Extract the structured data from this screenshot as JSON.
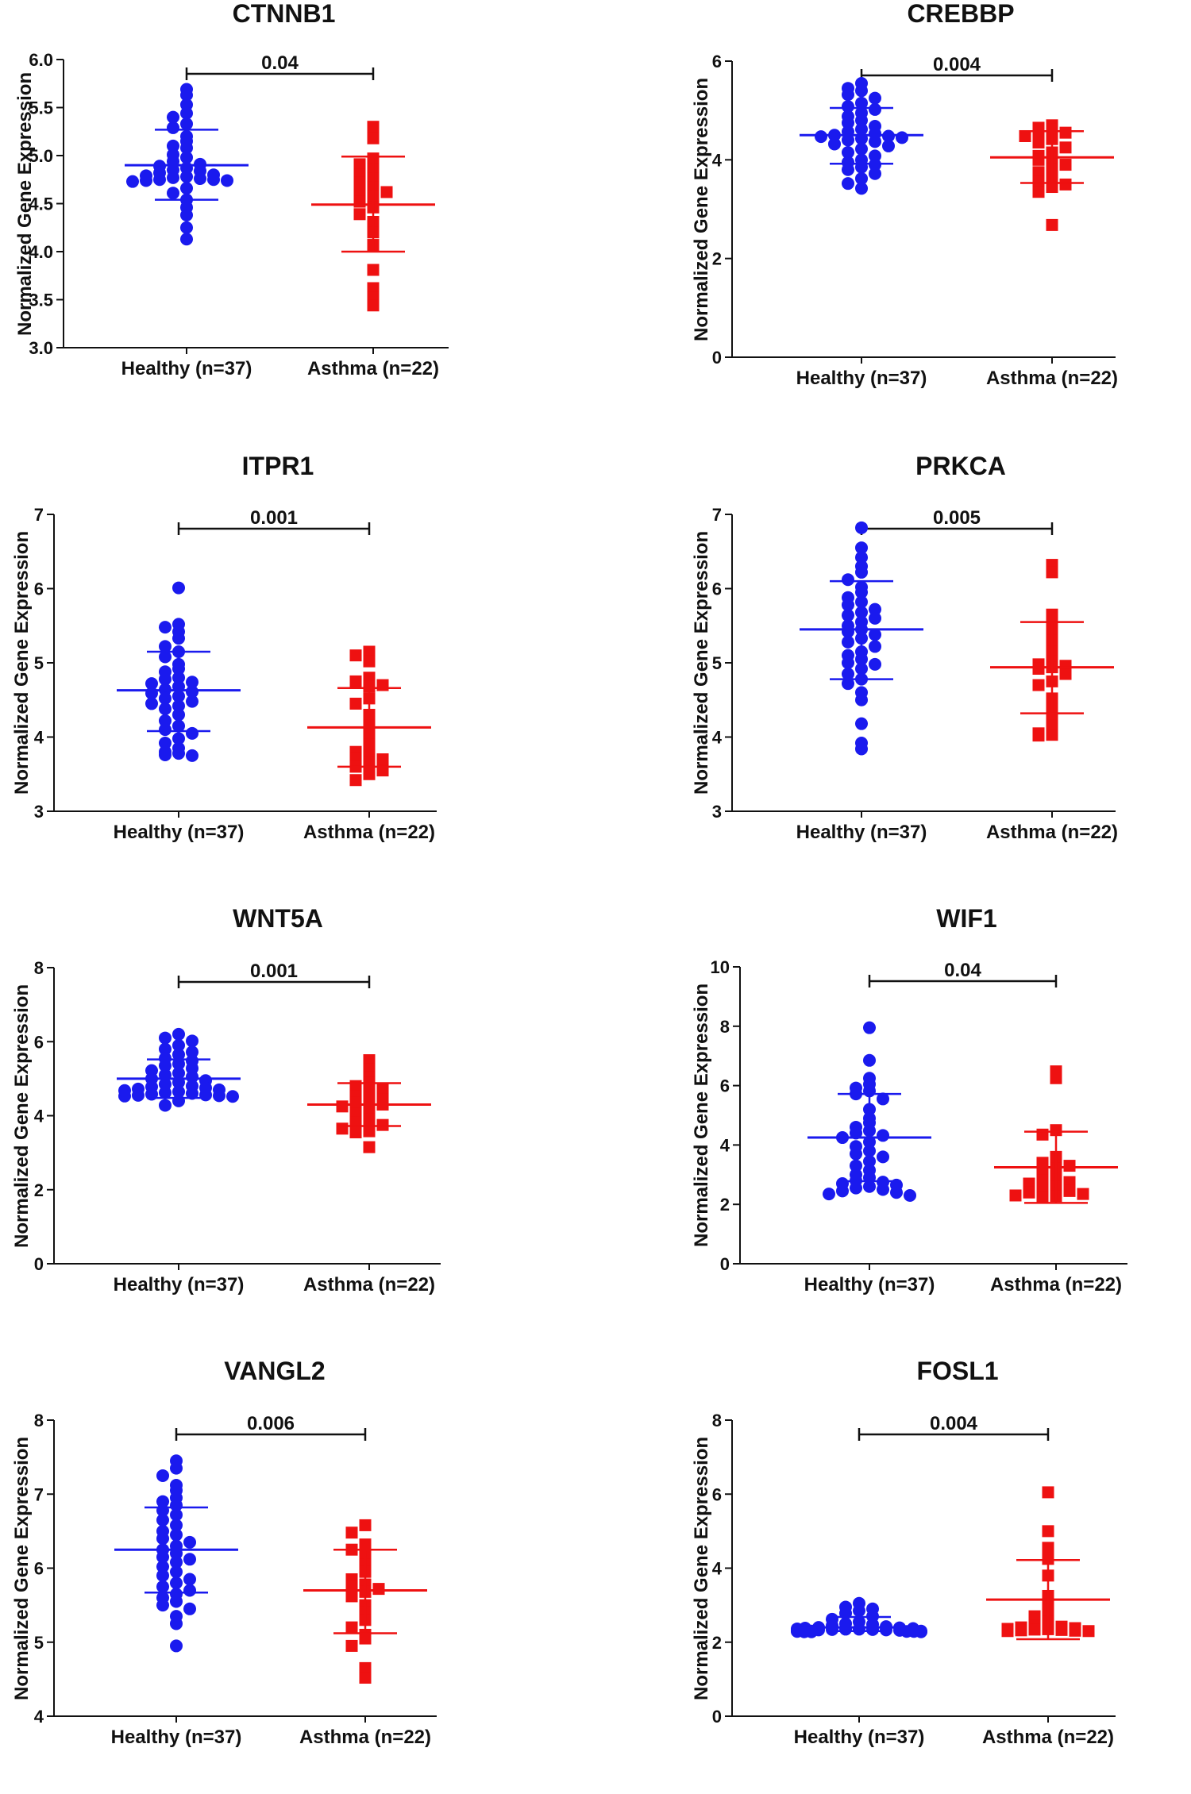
{
  "figure": {
    "y_axis_label": "Normalized Gene Expression"
  },
  "colors": {
    "healthy": "#1a1aee",
    "asthma": "#ee1111",
    "axis": "#111111"
  },
  "chart_data": [
    {
      "type": "scatter",
      "title": "CTNNB1",
      "ylabel": "Normalized Gene Expression",
      "ylim": [
        3.0,
        6.0
      ],
      "yticks": [
        "3.0",
        "3.5",
        "4.0",
        "4.5",
        "5.0",
        "5.5",
        "6.0"
      ],
      "categories": [
        "Healthy  (n=37)",
        "Asthma (n=22)"
      ],
      "p_value": "0.04",
      "series": [
        {
          "name": "Healthy",
          "n": 37,
          "marker": "circle",
          "mean": 4.9,
          "sd_low": 4.54,
          "sd_high": 5.27,
          "values": [
            5.69,
            5.63,
            5.53,
            5.44,
            5.4,
            5.33,
            5.29,
            5.2,
            5.15,
            5.1,
            5.08,
            5.01,
            4.98,
            4.94,
            4.91,
            4.89,
            4.87,
            4.85,
            4.84,
            4.82,
            4.8,
            4.79,
            4.78,
            4.77,
            4.76,
            4.75,
            4.75,
            4.74,
            4.74,
            4.73,
            4.66,
            4.61,
            4.54,
            4.46,
            4.38,
            4.25,
            4.13
          ]
        },
        {
          "name": "Asthma",
          "n": 22,
          "marker": "square",
          "mean": 4.49,
          "sd_low": 4.0,
          "sd_high": 4.99,
          "values": [
            5.3,
            5.18,
            4.97,
            4.91,
            4.86,
            4.8,
            4.76,
            4.72,
            4.67,
            4.64,
            4.62,
            4.58,
            4.52,
            4.46,
            4.39,
            4.31,
            4.2,
            4.07,
            3.81,
            3.62,
            3.52,
            3.44
          ]
        }
      ]
    },
    {
      "type": "scatter",
      "title": "CREBBP",
      "ylabel": "Normalized Gene Expression",
      "ylim": [
        0,
        6
      ],
      "yticks": [
        "0",
        "2",
        "4",
        "6"
      ],
      "categories": [
        "Healthy  (n=37)",
        "Asthma (n=22)"
      ],
      "p_value": "0.004",
      "series": [
        {
          "name": "Healthy",
          "n": 37,
          "marker": "circle",
          "mean": 4.5,
          "sd_low": 3.92,
          "sd_high": 5.05,
          "values": [
            5.55,
            5.45,
            5.4,
            5.32,
            5.25,
            5.15,
            5.08,
            5.02,
            4.95,
            4.88,
            4.8,
            4.75,
            4.68,
            4.62,
            4.57,
            4.53,
            4.5,
            4.48,
            4.47,
            4.45,
            4.43,
            4.4,
            4.37,
            4.32,
            4.28,
            4.22,
            4.15,
            4.08,
            4.0,
            3.95,
            3.9,
            3.85,
            3.8,
            3.72,
            3.62,
            3.52,
            3.42
          ]
        },
        {
          "name": "Asthma",
          "n": 22,
          "marker": "square",
          "mean": 4.05,
          "sd_low": 3.53,
          "sd_high": 4.58,
          "values": [
            4.7,
            4.65,
            4.62,
            4.58,
            4.55,
            4.48,
            4.42,
            4.35,
            4.25,
            4.15,
            4.08,
            4.05,
            4.0,
            3.9,
            3.82,
            3.75,
            3.65,
            3.55,
            3.5,
            3.45,
            3.35,
            2.68
          ]
        }
      ]
    },
    {
      "type": "scatter",
      "title": "ITPR1",
      "ylabel": "Normalized Gene Expression",
      "ylim": [
        3,
        7
      ],
      "yticks": [
        "3",
        "4",
        "5",
        "6",
        "7"
      ],
      "categories": [
        "Healthy  (n=37)",
        "Asthma (n=22)"
      ],
      "p_value": "0.001",
      "series": [
        {
          "name": "Healthy",
          "n": 37,
          "marker": "circle",
          "mean": 4.63,
          "sd_low": 4.08,
          "sd_high": 5.15,
          "values": [
            6.01,
            5.52,
            5.48,
            5.42,
            5.33,
            5.22,
            5.15,
            5.08,
            4.98,
            4.92,
            4.88,
            4.8,
            4.78,
            4.74,
            4.72,
            4.68,
            4.64,
            4.61,
            4.59,
            4.55,
            4.52,
            4.48,
            4.45,
            4.42,
            4.38,
            4.3,
            4.22,
            4.15,
            4.1,
            4.05,
            3.98,
            3.92,
            3.85,
            3.8,
            3.78,
            3.76,
            3.75
          ]
        },
        {
          "name": "Asthma",
          "n": 22,
          "marker": "square",
          "mean": 4.13,
          "sd_low": 3.6,
          "sd_high": 4.66,
          "values": [
            5.15,
            5.1,
            5.02,
            4.8,
            4.75,
            4.7,
            4.68,
            4.52,
            4.45,
            4.3,
            4.15,
            4.0,
            3.9,
            3.8,
            3.75,
            3.72,
            3.7,
            3.65,
            3.6,
            3.55,
            3.5,
            3.42
          ]
        }
      ]
    },
    {
      "type": "scatter",
      "title": "PRKCA",
      "ylabel": "Normalized Gene Expression",
      "ylim": [
        3,
        7
      ],
      "yticks": [
        "3",
        "4",
        "5",
        "6",
        "7"
      ],
      "categories": [
        "Healthy  (n=37)",
        "Asthma (n=22)"
      ],
      "p_value": "0.005",
      "series": [
        {
          "name": "Healthy",
          "n": 37,
          "marker": "circle",
          "mean": 5.45,
          "sd_low": 4.78,
          "sd_high": 6.1,
          "values": [
            6.82,
            6.55,
            6.42,
            6.3,
            6.22,
            6.12,
            6.02,
            5.95,
            5.88,
            5.82,
            5.78,
            5.72,
            5.68,
            5.64,
            5.6,
            5.55,
            5.5,
            5.45,
            5.42,
            5.38,
            5.33,
            5.28,
            5.22,
            5.15,
            5.1,
            5.05,
            5.0,
            4.98,
            4.92,
            4.85,
            4.78,
            4.72,
            4.6,
            4.5,
            4.18,
            3.92,
            3.84
          ]
        },
        {
          "name": "Asthma",
          "n": 22,
          "marker": "square",
          "mean": 4.94,
          "sd_low": 4.32,
          "sd_high": 5.55,
          "values": [
            6.32,
            6.22,
            5.65,
            5.52,
            5.42,
            5.3,
            5.15,
            5.02,
            4.98,
            4.96,
            4.94,
            4.92,
            4.85,
            4.75,
            4.7,
            4.52,
            4.38,
            4.25,
            4.15,
            4.05,
            4.03,
            4.02
          ]
        }
      ]
    },
    {
      "type": "scatter",
      "title": "WNT5A",
      "ylabel": "Normalized Gene Expression",
      "ylim": [
        0,
        8
      ],
      "yticks": [
        "0",
        "2",
        "4",
        "6",
        "8"
      ],
      "categories": [
        "Healthy  (n=37)",
        "Asthma (n=22)"
      ],
      "p_value": "0.001",
      "series": [
        {
          "name": "Healthy",
          "n": 37,
          "marker": "circle",
          "mean": 5.0,
          "sd_low": 4.48,
          "sd_high": 5.52,
          "values": [
            6.2,
            6.1,
            6.02,
            5.9,
            5.8,
            5.72,
            5.65,
            5.55,
            5.48,
            5.4,
            5.35,
            5.28,
            5.22,
            5.15,
            5.1,
            5.05,
            5.0,
            4.95,
            4.9,
            4.85,
            4.8,
            4.78,
            4.75,
            4.72,
            4.7,
            4.68,
            4.65,
            4.62,
            4.6,
            4.58,
            4.56,
            4.55,
            4.54,
            4.53,
            4.52,
            4.4,
            4.28
          ]
        },
        {
          "name": "Asthma",
          "n": 22,
          "marker": "square",
          "mean": 4.3,
          "sd_low": 3.72,
          "sd_high": 4.88,
          "values": [
            5.5,
            5.25,
            5.05,
            4.9,
            4.8,
            4.7,
            4.6,
            4.52,
            4.45,
            4.4,
            4.35,
            4.3,
            4.25,
            4.15,
            4.05,
            3.9,
            3.82,
            3.75,
            3.65,
            3.58,
            3.55,
            3.15
          ]
        }
      ]
    },
    {
      "type": "scatter",
      "title": "WIF1",
      "ylabel": "Normalized Gene Expression",
      "ylim": [
        0,
        10
      ],
      "yticks": [
        "0",
        "2",
        "4",
        "6",
        "8",
        "10"
      ],
      "categories": [
        "Healthy  (n=37)",
        "Asthma (n=22)"
      ],
      "p_value": "0.04",
      "series": [
        {
          "name": "Healthy",
          "n": 37,
          "marker": "circle",
          "mean": 4.25,
          "sd_low": 2.78,
          "sd_high": 5.72,
          "values": [
            7.95,
            6.85,
            6.25,
            6.05,
            5.92,
            5.82,
            5.72,
            5.55,
            5.2,
            4.9,
            4.75,
            4.6,
            4.48,
            4.4,
            4.32,
            4.25,
            4.1,
            3.95,
            3.8,
            3.7,
            3.6,
            3.45,
            3.3,
            3.15,
            3.0,
            2.9,
            2.8,
            2.75,
            2.7,
            2.65,
            2.6,
            2.55,
            2.5,
            2.45,
            2.4,
            2.35,
            2.3
          ]
        },
        {
          "name": "Asthma",
          "n": 22,
          "marker": "square",
          "mean": 3.25,
          "sd_low": 2.05,
          "sd_high": 4.45,
          "values": [
            6.48,
            6.25,
            4.5,
            4.35,
            3.6,
            3.5,
            3.4,
            3.3,
            3.2,
            3.1,
            2.9,
            2.8,
            2.75,
            2.7,
            2.6,
            2.5,
            2.45,
            2.4,
            2.35,
            2.3,
            2.28,
            2.25
          ]
        }
      ]
    },
    {
      "type": "scatter",
      "title": "VANGL2",
      "ylabel": "Normalized Gene Expression",
      "ylim": [
        4,
        8
      ],
      "yticks": [
        "4",
        "5",
        "6",
        "7",
        "8"
      ],
      "categories": [
        "Healthy  (n=37)",
        "Asthma (n=22)"
      ],
      "p_value": "0.006",
      "series": [
        {
          "name": "Healthy",
          "n": 37,
          "marker": "circle",
          "mean": 6.25,
          "sd_low": 5.67,
          "sd_high": 6.82,
          "values": [
            7.45,
            7.35,
            7.25,
            7.12,
            7.05,
            6.95,
            6.9,
            6.85,
            6.78,
            6.72,
            6.65,
            6.58,
            6.5,
            6.45,
            6.4,
            6.35,
            6.3,
            6.25,
            6.2,
            6.15,
            6.12,
            6.08,
            6.02,
            5.95,
            5.9,
            5.85,
            5.8,
            5.75,
            5.7,
            5.65,
            5.6,
            5.55,
            5.5,
            5.45,
            5.35,
            5.25,
            4.95
          ]
        },
        {
          "name": "Asthma",
          "n": 22,
          "marker": "square",
          "mean": 5.7,
          "sd_low": 5.12,
          "sd_high": 6.25,
          "values": [
            6.58,
            6.48,
            6.32,
            6.25,
            6.18,
            6.05,
            5.95,
            5.85,
            5.78,
            5.75,
            5.72,
            5.68,
            5.62,
            5.5,
            5.4,
            5.3,
            5.2,
            5.1,
            5.05,
            4.95,
            4.65,
            4.52
          ]
        }
      ]
    },
    {
      "type": "scatter",
      "title": "FOSL1",
      "ylabel": "Normalized Gene Expression",
      "ylim": [
        0,
        8
      ],
      "yticks": [
        "0",
        "2",
        "4",
        "6",
        "8"
      ],
      "categories": [
        "Healthy  (n=37)",
        "Asthma (n=22)"
      ],
      "p_value": "0.004",
      "series": [
        {
          "name": "Healthy",
          "n": 37,
          "marker": "circle",
          "mean": 2.4,
          "sd_low": 2.3,
          "sd_high": 2.68,
          "values": [
            3.05,
            2.95,
            2.9,
            2.85,
            2.78,
            2.7,
            2.62,
            2.55,
            2.5,
            2.48,
            2.45,
            2.42,
            2.4,
            2.39,
            2.38,
            2.37,
            2.36,
            2.35,
            2.35,
            2.34,
            2.34,
            2.33,
            2.33,
            2.32,
            2.32,
            2.31,
            2.31,
            2.3,
            2.3,
            2.3,
            2.3,
            2.29,
            2.29,
            2.29,
            2.28,
            2.28,
            2.28
          ]
        },
        {
          "name": "Asthma",
          "n": 22,
          "marker": "square",
          "mean": 3.15,
          "sd_low": 2.08,
          "sd_high": 4.22,
          "values": [
            6.05,
            5.0,
            4.55,
            4.25,
            3.8,
            3.25,
            3.0,
            2.85,
            2.7,
            2.55,
            2.45,
            2.42,
            2.4,
            2.38,
            2.36,
            2.35,
            2.34,
            2.33,
            2.32,
            2.31,
            2.3,
            2.3
          ]
        }
      ]
    }
  ]
}
